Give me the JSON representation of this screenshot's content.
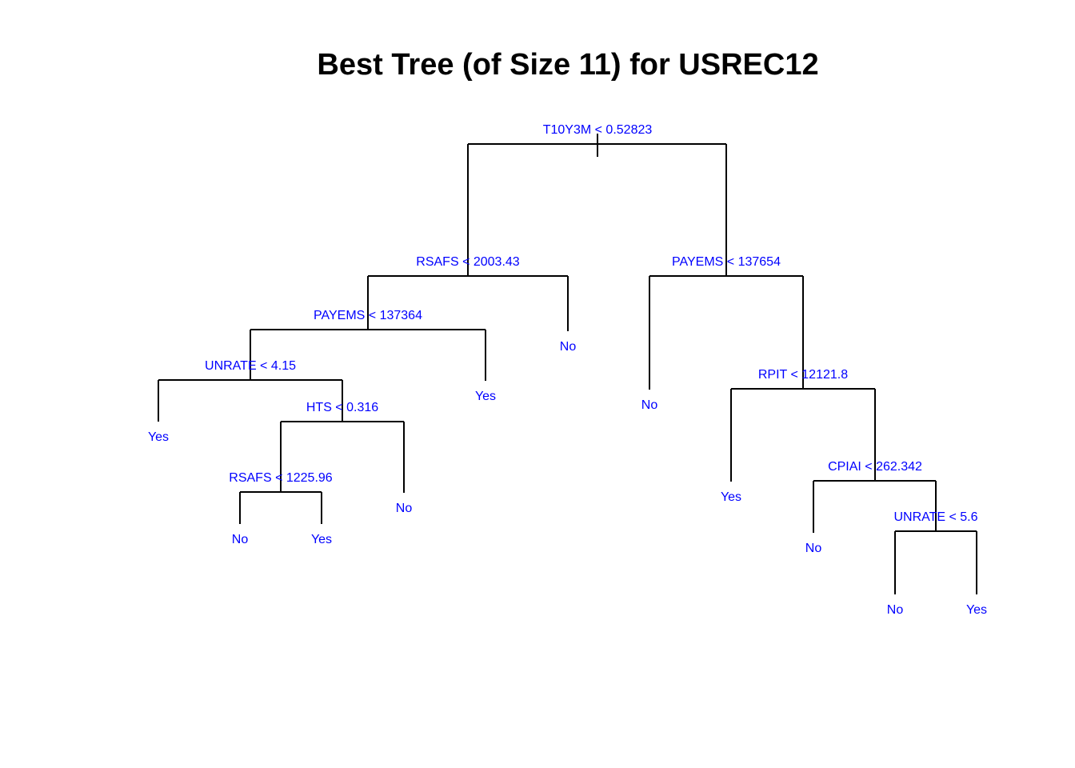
{
  "title": "Best Tree (of Size 11) for USREC12",
  "colors": {
    "label": "#0000ff",
    "line": "#000000",
    "background": "#ffffff"
  },
  "tree": {
    "split": "T10Y3M < 0.52823",
    "left": {
      "split": "RSAFS < 2003.43",
      "left": {
        "split": "PAYEMS < 137364",
        "left": {
          "split": "UNRATE < 4.15",
          "left": {
            "leaf": "Yes"
          },
          "right": {
            "split": "HTS < 0.316",
            "left": {
              "split": "RSAFS < 1225.96",
              "left": {
                "leaf": "No"
              },
              "right": {
                "leaf": "Yes"
              }
            },
            "right": {
              "leaf": "No"
            }
          }
        },
        "right": {
          "leaf": "Yes"
        }
      },
      "right": {
        "leaf": "No"
      }
    },
    "right": {
      "split": "PAYEMS < 137654",
      "left": {
        "leaf": "No"
      },
      "right": {
        "split": "RPIT < 12121.8",
        "left": {
          "leaf": "Yes"
        },
        "right": {
          "split": "CPIAI < 262.342",
          "left": {
            "leaf": "No"
          },
          "right": {
            "split": "UNRATE < 5.6",
            "left": {
              "leaf": "No"
            },
            "right": {
              "leaf": "Yes"
            }
          }
        }
      }
    }
  }
}
